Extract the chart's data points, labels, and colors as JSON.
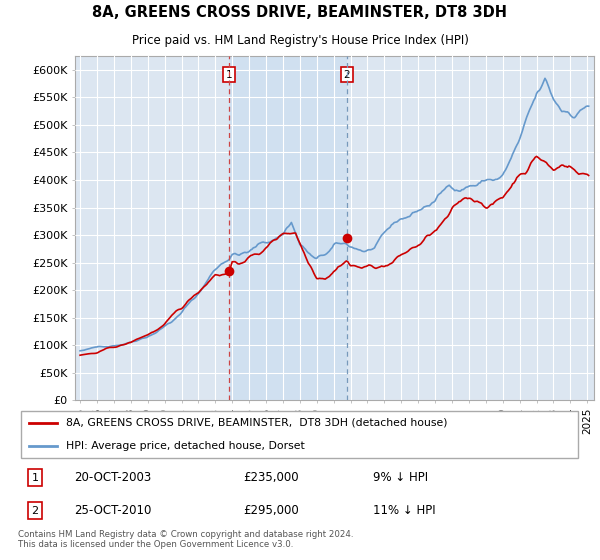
{
  "title": "8A, GREENS CROSS DRIVE, BEAMINSTER, DT8 3DH",
  "subtitle": "Price paid vs. HM Land Registry's House Price Index (HPI)",
  "ylabel_ticks": [
    "£0",
    "£50K",
    "£100K",
    "£150K",
    "£200K",
    "£250K",
    "£300K",
    "£350K",
    "£400K",
    "£450K",
    "£500K",
    "£550K",
    "£600K"
  ],
  "ylim": [
    0,
    620000
  ],
  "ytick_vals": [
    0,
    50000,
    100000,
    150000,
    200000,
    250000,
    300000,
    350000,
    400000,
    450000,
    500000,
    550000,
    600000
  ],
  "legend_line1": "8A, GREENS CROSS DRIVE, BEAMINSTER,  DT8 3DH (detached house)",
  "legend_line2": "HPI: Average price, detached house, Dorset",
  "transaction1_label": "1",
  "transaction1_date": "20-OCT-2003",
  "transaction1_price": "£235,000",
  "transaction1_hpi": "9% ↓ HPI",
  "transaction2_label": "2",
  "transaction2_date": "25-OCT-2010",
  "transaction2_price": "£295,000",
  "transaction2_hpi": "11% ↓ HPI",
  "footer": "Contains HM Land Registry data © Crown copyright and database right 2024.\nThis data is licensed under the Open Government Licence v3.0.",
  "line_color_red": "#cc0000",
  "line_color_blue": "#6699cc",
  "plot_bg_color": "#dce6f1",
  "shade_color": "#cdd9eb",
  "vline1_x": 2003.79,
  "vline2_x": 2010.79,
  "marker1_x": 2003.79,
  "marker1_y": 235000,
  "marker2_x": 2010.79,
  "marker2_y": 295000,
  "xlim_left": 1994.7,
  "xlim_right": 2025.4
}
